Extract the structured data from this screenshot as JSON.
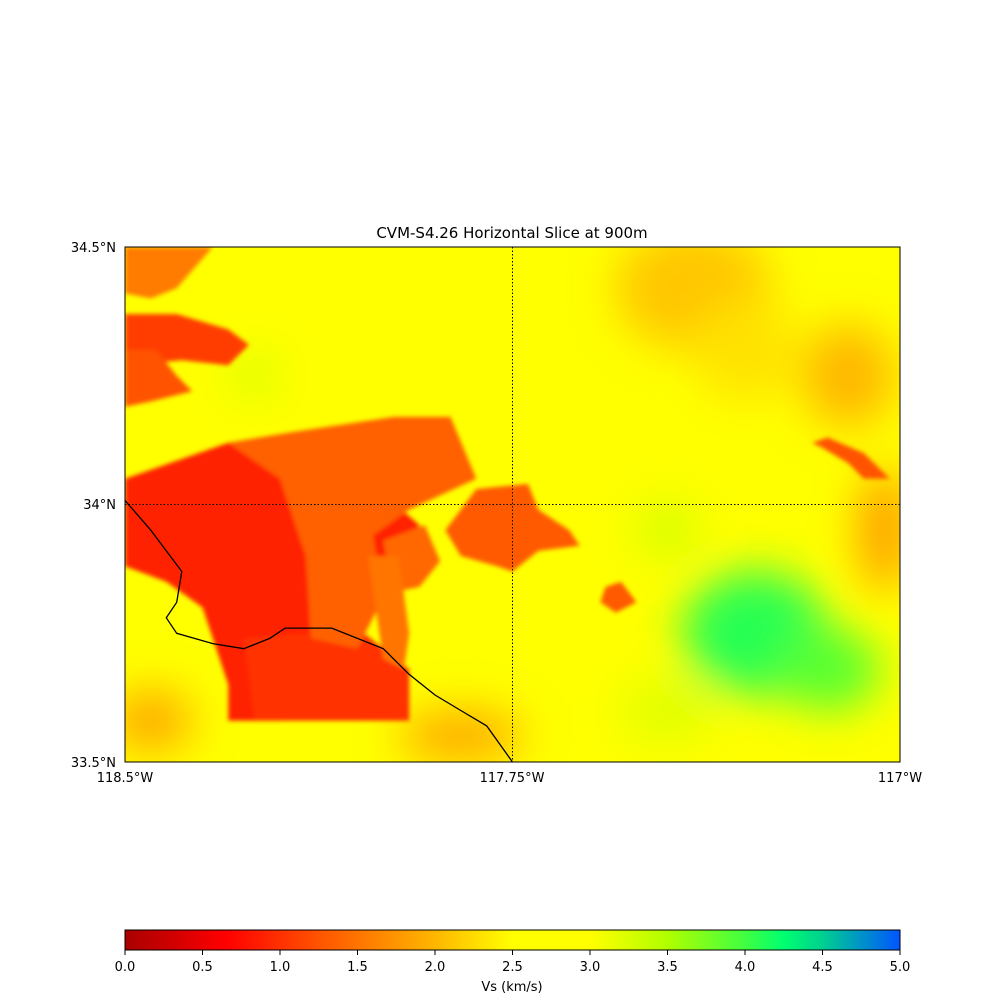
{
  "title": "CVM-S4.26 Horizontal Slice at 900m",
  "map": {
    "lat_range": [
      33.5,
      34.5
    ],
    "lon_range": [
      -118.5,
      -117.0
    ],
    "lat_labels": [
      "34.5°N",
      "34°N",
      "33.5°N"
    ],
    "lon_labels": [
      "118.5°W",
      "117.75°W",
      "117°W"
    ],
    "gridlines": {
      "lat": 34.0,
      "lon": -117.75,
      "style": "dotted"
    },
    "coastline": [
      [
        -118.5,
        34.008
      ],
      [
        -118.45,
        33.95
      ],
      [
        -118.39,
        33.87
      ],
      [
        -118.4,
        33.81
      ],
      [
        -118.42,
        33.78
      ],
      [
        -118.4,
        33.75
      ],
      [
        -118.33,
        33.73
      ],
      [
        -118.27,
        33.72
      ],
      [
        -118.22,
        33.74
      ],
      [
        -118.19,
        33.76
      ],
      [
        -118.1,
        33.76
      ],
      [
        -118.0,
        33.72
      ],
      [
        -117.95,
        33.67
      ],
      [
        -117.9,
        33.63
      ],
      [
        -117.85,
        33.6
      ],
      [
        -117.8,
        33.57
      ],
      [
        -117.75,
        33.5
      ]
    ],
    "regions": [
      {
        "level": 0.9,
        "poly": [
          [
            -118.5,
            34.05
          ],
          [
            -118.3,
            34.12
          ],
          [
            -118.05,
            34.1
          ],
          [
            -118.0,
            34.02
          ],
          [
            -117.93,
            33.96
          ],
          [
            -117.95,
            33.92
          ],
          [
            -118.05,
            33.85
          ],
          [
            -118.09,
            33.75
          ],
          [
            -118.1,
            33.7
          ],
          [
            -118.2,
            33.58
          ],
          [
            -118.3,
            33.58
          ],
          [
            -118.3,
            33.65
          ],
          [
            -118.35,
            33.8
          ],
          [
            -118.42,
            33.85
          ],
          [
            -118.5,
            33.88
          ]
        ]
      },
      {
        "level": 1.0,
        "poly": [
          [
            -118.27,
            33.74
          ],
          [
            -118.05,
            33.76
          ],
          [
            -117.95,
            33.68
          ],
          [
            -117.95,
            33.58
          ],
          [
            -118.25,
            33.58
          ]
        ]
      },
      {
        "level": 1.35,
        "poly": [
          [
            -118.18,
            34.14
          ],
          [
            -117.98,
            34.17
          ],
          [
            -117.87,
            34.17
          ],
          [
            -117.82,
            34.05
          ],
          [
            -117.95,
            33.99
          ],
          [
            -118.02,
            33.94
          ],
          [
            -118.0,
            33.82
          ],
          [
            -118.05,
            33.72
          ],
          [
            -118.14,
            33.74
          ],
          [
            -118.15,
            33.9
          ],
          [
            -118.2,
            34.05
          ],
          [
            -118.3,
            34.12
          ]
        ]
      },
      {
        "level": 1.3,
        "poly": [
          [
            -117.82,
            34.03
          ],
          [
            -117.72,
            34.04
          ],
          [
            -117.7,
            33.99
          ],
          [
            -117.64,
            33.95
          ],
          [
            -117.62,
            33.92
          ],
          [
            -117.7,
            33.91
          ],
          [
            -117.75,
            33.87
          ],
          [
            -117.78,
            33.88
          ],
          [
            -117.85,
            33.9
          ],
          [
            -117.88,
            33.95
          ]
        ]
      },
      {
        "level": 1.4,
        "poly": [
          [
            -118.0,
            33.93
          ],
          [
            -117.92,
            33.96
          ],
          [
            -117.89,
            33.89
          ],
          [
            -117.93,
            33.84
          ],
          [
            -117.98,
            33.83
          ]
        ]
      },
      {
        "level": 1.5,
        "poly": [
          [
            -118.03,
            33.9
          ],
          [
            -117.97,
            33.9
          ],
          [
            -117.95,
            33.75
          ],
          [
            -117.96,
            33.68
          ],
          [
            -118.0,
            33.7
          ]
        ]
      },
      {
        "level": 1.1,
        "poly": [
          [
            -118.5,
            34.37
          ],
          [
            -118.4,
            34.37
          ],
          [
            -118.3,
            34.34
          ],
          [
            -118.26,
            34.31
          ],
          [
            -118.3,
            34.27
          ],
          [
            -118.39,
            34.28
          ],
          [
            -118.5,
            34.27
          ]
        ]
      },
      {
        "level": 1.25,
        "poly": [
          [
            -118.5,
            34.3
          ],
          [
            -118.44,
            34.3
          ],
          [
            -118.4,
            34.25
          ],
          [
            -118.37,
            34.22
          ],
          [
            -118.45,
            34.2
          ],
          [
            -118.5,
            34.19
          ]
        ]
      },
      {
        "level": 1.55,
        "poly": [
          [
            -118.5,
            34.5
          ],
          [
            -118.33,
            34.5
          ],
          [
            -118.4,
            34.42
          ],
          [
            -118.45,
            34.4
          ],
          [
            -118.5,
            34.41
          ]
        ]
      },
      {
        "level": 1.3,
        "poly": [
          [
            -117.57,
            33.84
          ],
          [
            -117.54,
            33.85
          ],
          [
            -117.51,
            33.81
          ],
          [
            -117.55,
            33.79
          ],
          [
            -117.58,
            33.81
          ]
        ]
      },
      {
        "level": 1.25,
        "poly": [
          [
            -117.15,
            34.11
          ],
          [
            -117.1,
            34.08
          ],
          [
            -117.07,
            34.05
          ],
          [
            -117.02,
            34.05
          ],
          [
            -117.07,
            34.1
          ],
          [
            -117.14,
            34.13
          ],
          [
            -117.17,
            34.12
          ]
        ]
      }
    ],
    "blobs": [
      {
        "lon": -117.28,
        "lat": 33.75,
        "rx": 0.14,
        "ry": 0.12,
        "level": 4.1
      },
      {
        "lon": -117.14,
        "lat": 33.68,
        "rx": 0.1,
        "ry": 0.08,
        "level": 3.9
      },
      {
        "lon": -117.45,
        "lat": 33.95,
        "rx": 0.06,
        "ry": 0.05,
        "level": 3.3
      },
      {
        "lon": -118.25,
        "lat": 34.25,
        "rx": 0.04,
        "ry": 0.03,
        "level": 3.4
      },
      {
        "lon": -117.45,
        "lat": 33.6,
        "rx": 0.09,
        "ry": 0.06,
        "level": 3.2
      },
      {
        "lon": -117.4,
        "lat": 34.42,
        "rx": 0.15,
        "ry": 0.12,
        "level": 2.1
      },
      {
        "lon": -117.1,
        "lat": 34.25,
        "rx": 0.09,
        "ry": 0.1,
        "level": 2.0
      },
      {
        "lon": -117.03,
        "lat": 33.95,
        "rx": 0.05,
        "ry": 0.12,
        "level": 1.8
      },
      {
        "lon": -117.3,
        "lat": 34.3,
        "rx": 0.1,
        "ry": 0.1,
        "level": 2.3
      },
      {
        "lon": -118.45,
        "lat": 33.58,
        "rx": 0.08,
        "ry": 0.06,
        "level": 1.9
      },
      {
        "lon": -117.85,
        "lat": 33.55,
        "rx": 0.12,
        "ry": 0.05,
        "level": 1.9
      }
    ]
  },
  "colorbar": {
    "label": "Vs (km/s)",
    "min": 0.0,
    "max": 5.0,
    "ticks": [
      "0.0",
      "0.5",
      "1.0",
      "1.5",
      "2.0",
      "2.5",
      "3.0",
      "3.5",
      "4.0",
      "4.5",
      "5.0"
    ],
    "tick_values": [
      0.0,
      0.5,
      1.0,
      1.5,
      2.0,
      2.5,
      3.0,
      3.5,
      4.0,
      4.5,
      5.0
    ],
    "background_level": 2.7,
    "colors": [
      {
        "v": 0.0,
        "c": "#a80000"
      },
      {
        "v": 0.65,
        "c": "#ff0000"
      },
      {
        "v": 1.3,
        "c": "#ff5a00"
      },
      {
        "v": 1.95,
        "c": "#ffb000"
      },
      {
        "v": 2.5,
        "c": "#ffff00"
      },
      {
        "v": 3.0,
        "c": "#ffff00"
      },
      {
        "v": 3.5,
        "c": "#b0ff00"
      },
      {
        "v": 4.0,
        "c": "#40ff40"
      },
      {
        "v": 4.25,
        "c": "#00ff70"
      },
      {
        "v": 4.5,
        "c": "#00d090"
      },
      {
        "v": 5.0,
        "c": "#0055ff"
      }
    ]
  }
}
